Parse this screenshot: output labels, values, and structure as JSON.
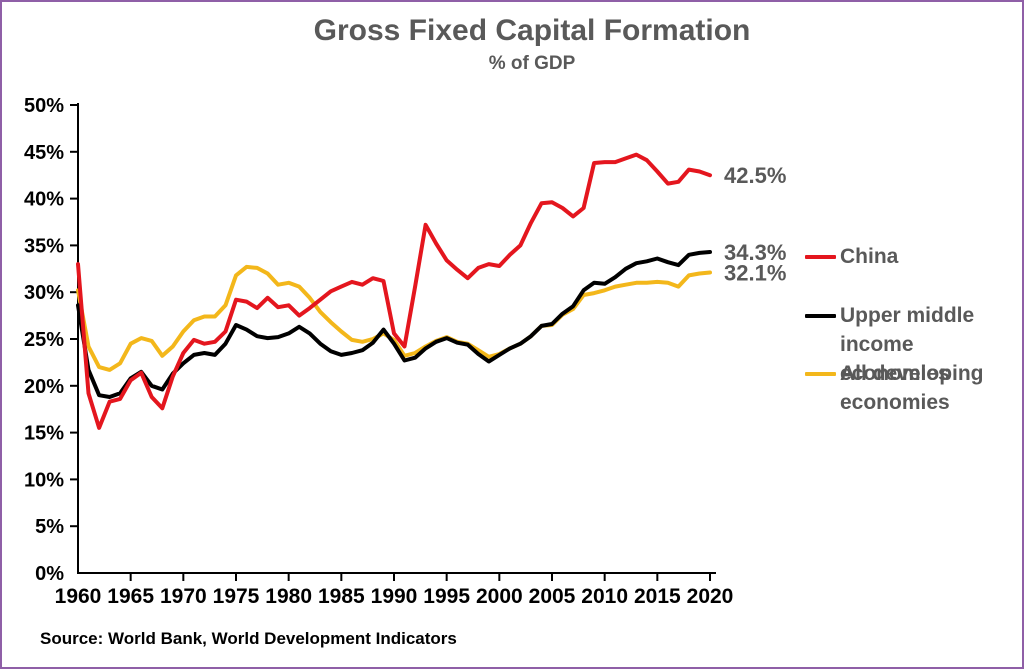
{
  "header": {
    "title": "Gross Fixed Capital Formation",
    "subtitle": "% of GDP"
  },
  "source": {
    "text": "Source: World Bank, World Development Indicators"
  },
  "colors": {
    "frame_border": "#8F5FA7",
    "title_text": "#595959",
    "axis_text": "#000000",
    "legend_text": "#595959"
  },
  "legend": {
    "items": [
      {
        "series": "China",
        "lines": [
          "China"
        ]
      },
      {
        "series": "Upper middle income economies",
        "lines": [
          "Upper middle",
          "income economies"
        ]
      },
      {
        "series": "All developing economies",
        "lines": [
          "All developing",
          "economies"
        ]
      }
    ]
  },
  "chart_data": {
    "type": "line",
    "title": "Gross Fixed Capital Formation",
    "subtitle": "% of GDP",
    "xlabel": "",
    "ylabel": "",
    "ylim": [
      0,
      50
    ],
    "ytick_step": 5,
    "ytick_suffix": "%",
    "grid": false,
    "legend_position": "right",
    "xticks": [
      1960,
      1965,
      1970,
      1975,
      1980,
      1985,
      1990,
      1995,
      2000,
      2005,
      2010,
      2015,
      2020
    ],
    "x": [
      1960,
      1961,
      1962,
      1963,
      1964,
      1965,
      1966,
      1967,
      1968,
      1969,
      1970,
      1971,
      1972,
      1973,
      1974,
      1975,
      1976,
      1977,
      1978,
      1979,
      1980,
      1981,
      1982,
      1983,
      1984,
      1985,
      1986,
      1987,
      1988,
      1989,
      1990,
      1991,
      1992,
      1993,
      1994,
      1995,
      1996,
      1997,
      1998,
      1999,
      2000,
      2001,
      2002,
      2003,
      2004,
      2005,
      2006,
      2007,
      2008,
      2009,
      2010,
      2011,
      2012,
      2013,
      2014,
      2015,
      2016,
      2017,
      2018,
      2019,
      2020
    ],
    "series": [
      {
        "name": "China",
        "color": "#E4161E",
        "end_label": "42.5%",
        "values": [
          33.0,
          19.2,
          15.5,
          18.3,
          18.6,
          20.6,
          21.4,
          18.8,
          17.6,
          21.0,
          23.5,
          24.9,
          24.5,
          24.7,
          25.8,
          29.2,
          29.0,
          28.3,
          29.4,
          28.4,
          28.6,
          27.5,
          28.3,
          29.2,
          30.1,
          30.6,
          31.1,
          30.8,
          31.5,
          31.2,
          25.6,
          24.2,
          30.6,
          37.2,
          35.2,
          33.4,
          32.4,
          31.5,
          32.6,
          33.0,
          32.8,
          34.0,
          35.0,
          37.4,
          39.5,
          39.6,
          39.0,
          38.1,
          39.0,
          43.8,
          43.9,
          43.9,
          44.3,
          44.7,
          44.1,
          42.9,
          41.6,
          41.8,
          43.1,
          42.9,
          42.5
        ]
      },
      {
        "name": "Upper middle income economies",
        "color": "#000000",
        "end_label": "34.3%",
        "values": [
          28.6,
          21.7,
          19.0,
          18.8,
          19.2,
          20.8,
          21.5,
          20.0,
          19.6,
          21.3,
          22.4,
          23.3,
          23.5,
          23.3,
          24.5,
          26.5,
          26.0,
          25.3,
          25.1,
          25.2,
          25.6,
          26.3,
          25.6,
          24.5,
          23.7,
          23.3,
          23.5,
          23.8,
          24.6,
          26.0,
          24.5,
          22.7,
          23.0,
          24.0,
          24.7,
          25.1,
          24.6,
          24.4,
          23.4,
          22.6,
          23.3,
          24.0,
          24.5,
          25.3,
          26.4,
          26.6,
          27.7,
          28.5,
          30.2,
          31.0,
          30.9,
          31.6,
          32.5,
          33.1,
          33.3,
          33.6,
          33.2,
          32.9,
          34.0,
          34.2,
          34.3
        ]
      },
      {
        "name": "All developing economies",
        "color": "#F3B71B",
        "end_label": "32.1%",
        "values": [
          30.2,
          24.2,
          22.0,
          21.7,
          22.4,
          24.5,
          25.1,
          24.8,
          23.2,
          24.2,
          25.8,
          27.0,
          27.4,
          27.4,
          28.6,
          31.8,
          32.7,
          32.6,
          32.0,
          30.8,
          31.0,
          30.6,
          29.4,
          27.9,
          26.8,
          25.8,
          24.9,
          24.7,
          25.0,
          25.6,
          24.9,
          23.2,
          23.5,
          24.2,
          24.8,
          25.2,
          24.7,
          24.5,
          23.8,
          23.1,
          23.4,
          24.0,
          24.5,
          25.3,
          26.4,
          26.5,
          27.6,
          28.2,
          29.7,
          29.9,
          30.2,
          30.6,
          30.8,
          31.0,
          31.0,
          31.1,
          31.0,
          30.6,
          31.8,
          32.0,
          32.1
        ]
      }
    ]
  }
}
